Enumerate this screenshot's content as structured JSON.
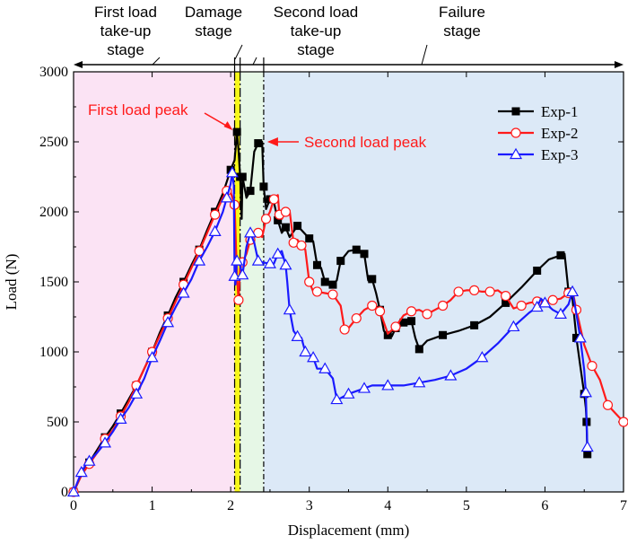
{
  "chart_data": {
    "type": "line",
    "xlabel": "Displacement (mm)",
    "ylabel": "Load (N)",
    "xlim": [
      0,
      7
    ],
    "ylim": [
      0,
      3000
    ],
    "xticks": [
      0,
      1,
      2,
      3,
      4,
      5,
      6,
      7
    ],
    "yticks": [
      0,
      500,
      1000,
      1500,
      2000,
      2500,
      3000
    ],
    "legend_position": "top-right",
    "colors": {
      "stage1": "#fbe3f4",
      "stage2": "#f7f71a",
      "stage3": "#e6f7e6",
      "stage4": "#dce9f7",
      "annotation": "#ff1a1a"
    },
    "stage_boundaries": [
      2.05,
      2.12,
      2.42
    ],
    "stages": [
      {
        "label_lines": [
          "First load",
          "take-up",
          "stage"
        ]
      },
      {
        "label_lines": [
          "Damage",
          "stage"
        ]
      },
      {
        "label_lines": [
          "Second load",
          "take-up",
          "stage"
        ]
      },
      {
        "label_lines": [
          "Failure",
          "stage"
        ]
      }
    ],
    "annotations": [
      {
        "text": "First load peak",
        "x": 2.05,
        "y": 2570
      },
      {
        "text": "Second load peak",
        "x": 2.42,
        "y": 2500
      }
    ],
    "series": [
      {
        "name": "Exp-1",
        "color": "#000000",
        "marker": "square",
        "points": [
          [
            0,
            0
          ],
          [
            0.1,
            120
          ],
          [
            0.2,
            210
          ],
          [
            0.3,
            300
          ],
          [
            0.4,
            390
          ],
          [
            0.5,
            470
          ],
          [
            0.6,
            560
          ],
          [
            0.7,
            660
          ],
          [
            0.8,
            760
          ],
          [
            0.9,
            880
          ],
          [
            1.0,
            1000
          ],
          [
            1.1,
            1140
          ],
          [
            1.2,
            1260
          ],
          [
            1.3,
            1390
          ],
          [
            1.4,
            1500
          ],
          [
            1.5,
            1620
          ],
          [
            1.6,
            1730
          ],
          [
            1.7,
            1870
          ],
          [
            1.8,
            2000
          ],
          [
            1.9,
            2130
          ],
          [
            2.0,
            2300
          ],
          [
            2.05,
            2370
          ],
          [
            2.08,
            2570
          ],
          [
            2.1,
            2440
          ],
          [
            2.12,
            2250
          ],
          [
            2.14,
            1950
          ],
          [
            2.15,
            2250
          ],
          [
            2.2,
            2100
          ],
          [
            2.25,
            2150
          ],
          [
            2.3,
            2430
          ],
          [
            2.35,
            2490
          ],
          [
            2.4,
            2500
          ],
          [
            2.42,
            2180
          ],
          [
            2.45,
            2020
          ],
          [
            2.5,
            2090
          ],
          [
            2.55,
            2070
          ],
          [
            2.6,
            1940
          ],
          [
            2.65,
            1850
          ],
          [
            2.7,
            1890
          ],
          [
            2.75,
            1820
          ],
          [
            2.85,
            1900
          ],
          [
            2.9,
            1870
          ],
          [
            3.0,
            1810
          ],
          [
            3.05,
            1790
          ],
          [
            3.1,
            1620
          ],
          [
            3.15,
            1600
          ],
          [
            3.2,
            1500
          ],
          [
            3.25,
            1500
          ],
          [
            3.3,
            1480
          ],
          [
            3.35,
            1510
          ],
          [
            3.4,
            1650
          ],
          [
            3.5,
            1720
          ],
          [
            3.6,
            1730
          ],
          [
            3.65,
            1720
          ],
          [
            3.7,
            1700
          ],
          [
            3.75,
            1510
          ],
          [
            3.8,
            1520
          ],
          [
            3.85,
            1420
          ],
          [
            3.9,
            1300
          ],
          [
            3.95,
            1150
          ],
          [
            4.0,
            1120
          ],
          [
            4.05,
            1110
          ],
          [
            4.1,
            1170
          ],
          [
            4.15,
            1180
          ],
          [
            4.2,
            1210
          ],
          [
            4.25,
            1220
          ],
          [
            4.3,
            1220
          ],
          [
            4.35,
            1100
          ],
          [
            4.4,
            1020
          ],
          [
            4.5,
            1080
          ],
          [
            4.7,
            1120
          ],
          [
            4.9,
            1150
          ],
          [
            5.1,
            1190
          ],
          [
            5.3,
            1250
          ],
          [
            5.5,
            1350
          ],
          [
            5.7,
            1460
          ],
          [
            5.9,
            1580
          ],
          [
            6.05,
            1660
          ],
          [
            6.2,
            1690
          ],
          [
            6.25,
            1700
          ],
          [
            6.3,
            1430
          ],
          [
            6.35,
            1380
          ],
          [
            6.4,
            1100
          ],
          [
            6.45,
            900
          ],
          [
            6.5,
            700
          ],
          [
            6.52,
            600
          ],
          [
            6.53,
            500
          ],
          [
            6.54,
            270
          ]
        ]
      },
      {
        "name": "Exp-2",
        "color": "#ff1a1a",
        "marker": "circle",
        "points": [
          [
            0,
            0
          ],
          [
            0.1,
            120
          ],
          [
            0.2,
            200
          ],
          [
            0.3,
            280
          ],
          [
            0.4,
            380
          ],
          [
            0.5,
            440
          ],
          [
            0.6,
            540
          ],
          [
            0.7,
            640
          ],
          [
            0.8,
            760
          ],
          [
            0.9,
            880
          ],
          [
            1.0,
            1000
          ],
          [
            1.1,
            1120
          ],
          [
            1.2,
            1240
          ],
          [
            1.3,
            1360
          ],
          [
            1.4,
            1480
          ],
          [
            1.5,
            1600
          ],
          [
            1.6,
            1720
          ],
          [
            1.7,
            1850
          ],
          [
            1.8,
            1980
          ],
          [
            1.9,
            2100
          ],
          [
            1.95,
            2150
          ],
          [
            2.0,
            2140
          ],
          [
            2.05,
            2050
          ],
          [
            2.08,
            1540
          ],
          [
            2.1,
            1370
          ],
          [
            2.12,
            1600
          ],
          [
            2.15,
            1640
          ],
          [
            2.2,
            1700
          ],
          [
            2.25,
            1800
          ],
          [
            2.3,
            1840
          ],
          [
            2.35,
            1850
          ],
          [
            2.4,
            1820
          ],
          [
            2.45,
            1950
          ],
          [
            2.5,
            2000
          ],
          [
            2.55,
            2090
          ],
          [
            2.6,
            2120
          ],
          [
            2.62,
            1980
          ],
          [
            2.65,
            1950
          ],
          [
            2.7,
            2000
          ],
          [
            2.75,
            2010
          ],
          [
            2.8,
            1780
          ],
          [
            2.85,
            1800
          ],
          [
            2.9,
            1760
          ],
          [
            2.95,
            1730
          ],
          [
            3.0,
            1500
          ],
          [
            3.05,
            1430
          ],
          [
            3.1,
            1430
          ],
          [
            3.2,
            1420
          ],
          [
            3.3,
            1410
          ],
          [
            3.4,
            1330
          ],
          [
            3.45,
            1160
          ],
          [
            3.5,
            1170
          ],
          [
            3.6,
            1240
          ],
          [
            3.7,
            1300
          ],
          [
            3.8,
            1330
          ],
          [
            3.85,
            1320
          ],
          [
            3.9,
            1290
          ],
          [
            4.0,
            1130
          ],
          [
            4.1,
            1180
          ],
          [
            4.2,
            1260
          ],
          [
            4.3,
            1290
          ],
          [
            4.4,
            1300
          ],
          [
            4.5,
            1270
          ],
          [
            4.6,
            1300
          ],
          [
            4.7,
            1330
          ],
          [
            4.8,
            1370
          ],
          [
            4.9,
            1430
          ],
          [
            5.0,
            1440
          ],
          [
            5.1,
            1440
          ],
          [
            5.2,
            1430
          ],
          [
            5.3,
            1430
          ],
          [
            5.4,
            1440
          ],
          [
            5.5,
            1400
          ],
          [
            5.6,
            1310
          ],
          [
            5.7,
            1330
          ],
          [
            5.8,
            1350
          ],
          [
            5.9,
            1360
          ],
          [
            6.0,
            1360
          ],
          [
            6.1,
            1370
          ],
          [
            6.2,
            1380
          ],
          [
            6.3,
            1420
          ],
          [
            6.35,
            1440
          ],
          [
            6.4,
            1300
          ],
          [
            6.5,
            1050
          ],
          [
            6.6,
            900
          ],
          [
            6.7,
            800
          ],
          [
            6.8,
            620
          ],
          [
            6.9,
            560
          ],
          [
            7.0,
            500
          ]
        ]
      },
      {
        "name": "Exp-3",
        "color": "#1a1aff",
        "marker": "triangle",
        "points": [
          [
            0,
            0
          ],
          [
            0.05,
            70
          ],
          [
            0.1,
            140
          ],
          [
            0.15,
            190
          ],
          [
            0.2,
            220
          ],
          [
            0.3,
            280
          ],
          [
            0.4,
            350
          ],
          [
            0.5,
            430
          ],
          [
            0.6,
            520
          ],
          [
            0.7,
            600
          ],
          [
            0.8,
            700
          ],
          [
            0.9,
            810
          ],
          [
            1.0,
            960
          ],
          [
            1.1,
            1080
          ],
          [
            1.2,
            1210
          ],
          [
            1.3,
            1320
          ],
          [
            1.4,
            1420
          ],
          [
            1.5,
            1520
          ],
          [
            1.6,
            1650
          ],
          [
            1.7,
            1750
          ],
          [
            1.8,
            1860
          ],
          [
            1.9,
            2000
          ],
          [
            1.95,
            2100
          ],
          [
            2.0,
            2200
          ],
          [
            2.02,
            2280
          ],
          [
            2.04,
            2190
          ],
          [
            2.05,
            1540
          ],
          [
            2.06,
            1480
          ],
          [
            2.08,
            1650
          ],
          [
            2.1,
            1660
          ],
          [
            2.15,
            1550
          ],
          [
            2.2,
            1750
          ],
          [
            2.25,
            1850
          ],
          [
            2.3,
            1780
          ],
          [
            2.35,
            1650
          ],
          [
            2.4,
            1640
          ],
          [
            2.5,
            1630
          ],
          [
            2.55,
            1630
          ],
          [
            2.6,
            1700
          ],
          [
            2.65,
            1720
          ],
          [
            2.7,
            1620
          ],
          [
            2.72,
            1500
          ],
          [
            2.75,
            1300
          ],
          [
            2.8,
            1150
          ],
          [
            2.85,
            1110
          ],
          [
            2.9,
            1100
          ],
          [
            2.95,
            1000
          ],
          [
            3.0,
            980
          ],
          [
            3.05,
            960
          ],
          [
            3.1,
            880
          ],
          [
            3.2,
            880
          ],
          [
            3.3,
            810
          ],
          [
            3.35,
            660
          ],
          [
            3.4,
            670
          ],
          [
            3.5,
            700
          ],
          [
            3.6,
            720
          ],
          [
            3.7,
            740
          ],
          [
            3.8,
            760
          ],
          [
            4.0,
            760
          ],
          [
            4.2,
            760
          ],
          [
            4.4,
            780
          ],
          [
            4.6,
            800
          ],
          [
            4.8,
            830
          ],
          [
            5.0,
            880
          ],
          [
            5.2,
            960
          ],
          [
            5.4,
            1060
          ],
          [
            5.6,
            1180
          ],
          [
            5.8,
            1280
          ],
          [
            5.9,
            1320
          ],
          [
            5.95,
            1380
          ],
          [
            6.0,
            1350
          ],
          [
            6.1,
            1300
          ],
          [
            6.2,
            1270
          ],
          [
            6.3,
            1340
          ],
          [
            6.35,
            1430
          ],
          [
            6.4,
            1270
          ],
          [
            6.45,
            1100
          ],
          [
            6.5,
            870
          ],
          [
            6.52,
            710
          ],
          [
            6.53,
            520
          ],
          [
            6.54,
            320
          ]
        ]
      }
    ]
  }
}
